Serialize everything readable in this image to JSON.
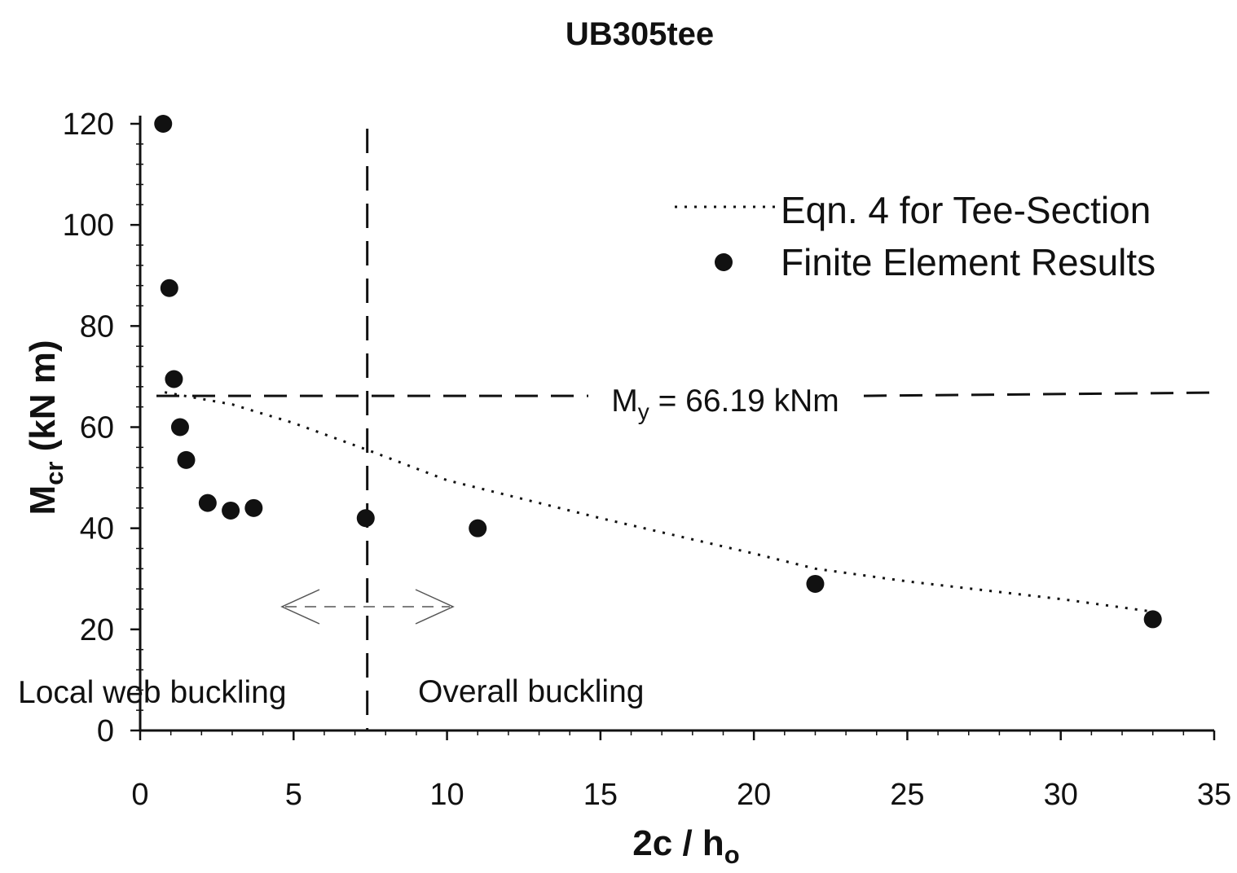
{
  "chart_data": {
    "type": "scatter",
    "title": "UB305tee",
    "xlabel": {
      "main": "2c / h",
      "sub": "o"
    },
    "ylabel": {
      "main": "M",
      "sub": "cr",
      "rest": " (kN m)"
    },
    "xlim": [
      0,
      35
    ],
    "ylim": [
      0,
      120
    ],
    "x_ticks": [
      "0",
      "5",
      "10",
      "15",
      "20",
      "25",
      "30",
      "35"
    ],
    "y_ticks": [
      "0",
      "20",
      "40",
      "60",
      "80",
      "100",
      "120"
    ],
    "grid": false,
    "legend_position": "top-right",
    "series": [
      {
        "name": "Eqn. 4 for Tee-Section",
        "style": "dotted-line",
        "x": [
          0.8,
          3,
          5,
          7.4,
          10,
          15,
          20,
          22,
          25,
          30,
          33
        ],
        "y": [
          66.9,
          64.5,
          60.8,
          55.5,
          49.5,
          42,
          35,
          32,
          29.5,
          26,
          23.5
        ]
      },
      {
        "name": "Finite Element Results",
        "style": "filled-circle",
        "x": [
          0.75,
          0.95,
          1.1,
          1.3,
          1.5,
          2.2,
          2.95,
          3.7,
          7.35,
          11,
          22,
          33
        ],
        "y": [
          120,
          87.5,
          69.5,
          60,
          53.5,
          45,
          43.5,
          44,
          42,
          40,
          29,
          22
        ]
      }
    ],
    "reference_lines": {
      "yield_moment": {
        "value": 66.19,
        "label_main": "M",
        "label_sub": "y",
        "label_rest": " = 66.19 kNm"
      },
      "transition_x": 7.4
    },
    "annotations": {
      "left_region": "Local web buckling",
      "right_region": "Overall buckling"
    }
  },
  "colors": {
    "ink": "#111111",
    "background": "#ffffff"
  }
}
